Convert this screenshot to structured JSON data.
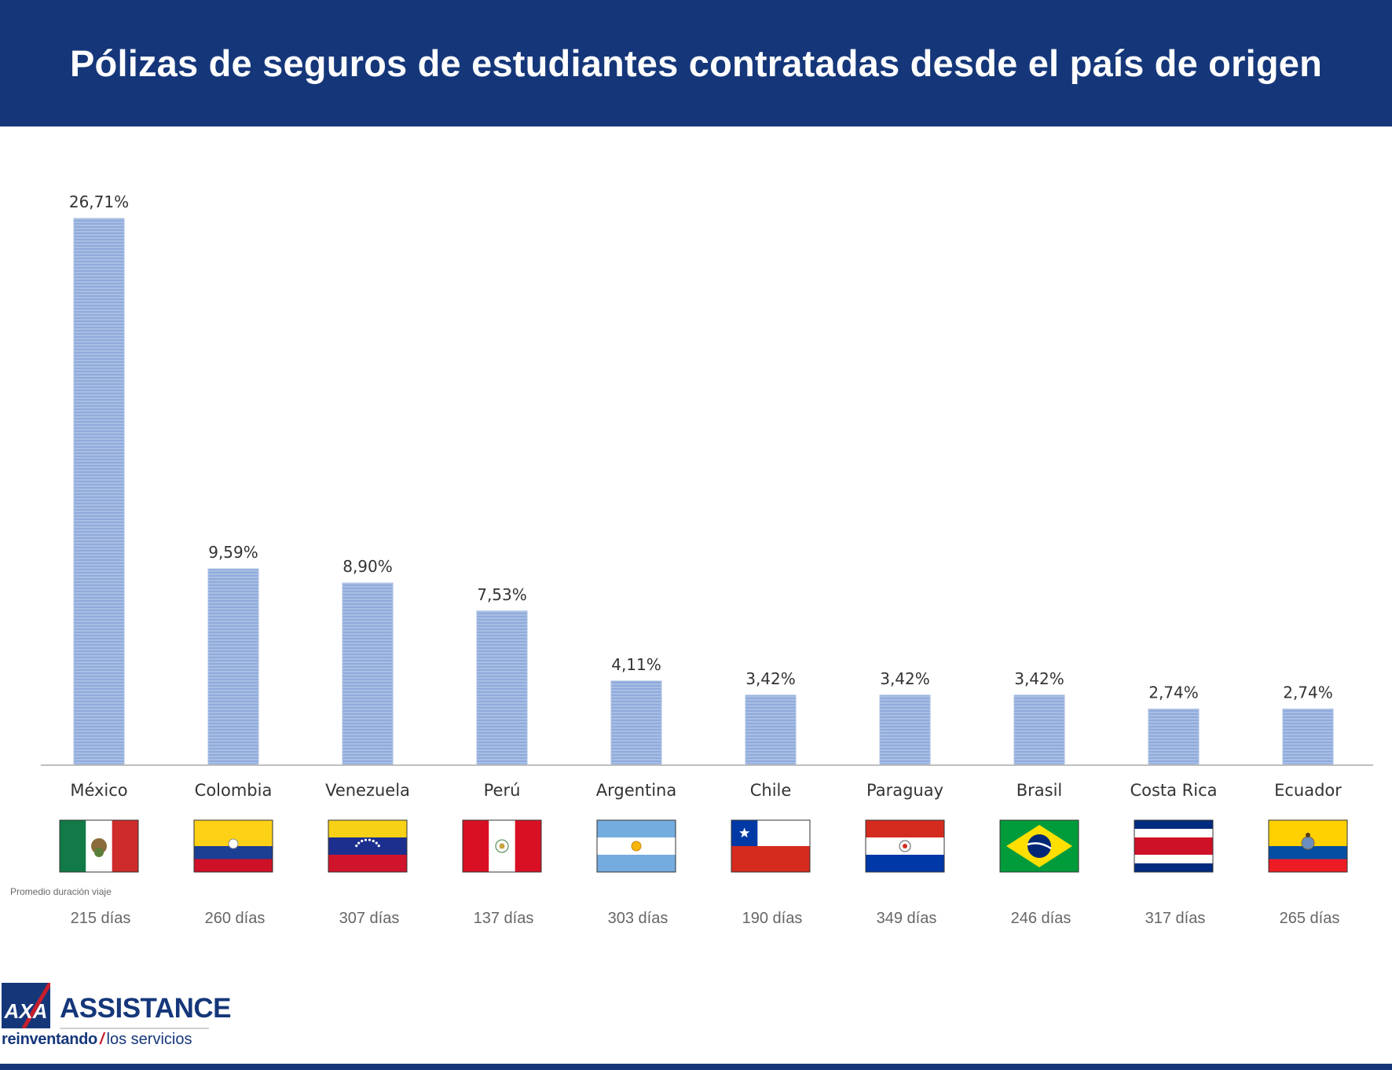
{
  "title": "Pólizas de seguros de estudiantes contratadas desde el país de origen",
  "promedio_label": "Promedio duración viaje",
  "brand": {
    "logo_text": "AXA",
    "name": "ASSISTANCE",
    "tagline_bold": "reinventando",
    "tagline_slash": "/",
    "tagline_rest": "los servicios"
  },
  "colors": {
    "header": "#15377a",
    "bar": "#8faadc",
    "bar_stripe": "#b4c7e7",
    "axis": "#bfbfbf"
  },
  "chart_data": {
    "type": "bar",
    "title": "Pólizas de seguros de estudiantes contratadas desde el país de origen",
    "xlabel": "",
    "ylabel": "",
    "ylim": [
      0,
      26.71
    ],
    "grid": false,
    "categories": [
      "México",
      "Colombia",
      "Venezuela",
      "Perú",
      "Argentina",
      "Chile",
      "Paraguay",
      "Brasil",
      "Costa Rica",
      "Ecuador"
    ],
    "values": [
      26.71,
      9.59,
      8.9,
      7.53,
      4.11,
      3.42,
      3.42,
      3.42,
      2.74,
      2.74
    ],
    "value_labels": [
      "26,71%",
      "9,59%",
      "8,90%",
      "7,53%",
      "4,11%",
      "3,42%",
      "3,42%",
      "3,42%",
      "2,74%",
      "2,74%"
    ],
    "durations": [
      "215 días",
      "260 días",
      "307 días",
      "137 días",
      "303 días",
      "190 días",
      "349 días",
      "246 días",
      "317 días",
      "265 días"
    ],
    "flags": [
      "mexico-flag",
      "colombia-flag",
      "venezuela-flag",
      "peru-flag",
      "argentina-flag",
      "chile-flag",
      "paraguay-flag",
      "brasil-flag",
      "costa-rica-flag",
      "ecuador-flag"
    ]
  }
}
